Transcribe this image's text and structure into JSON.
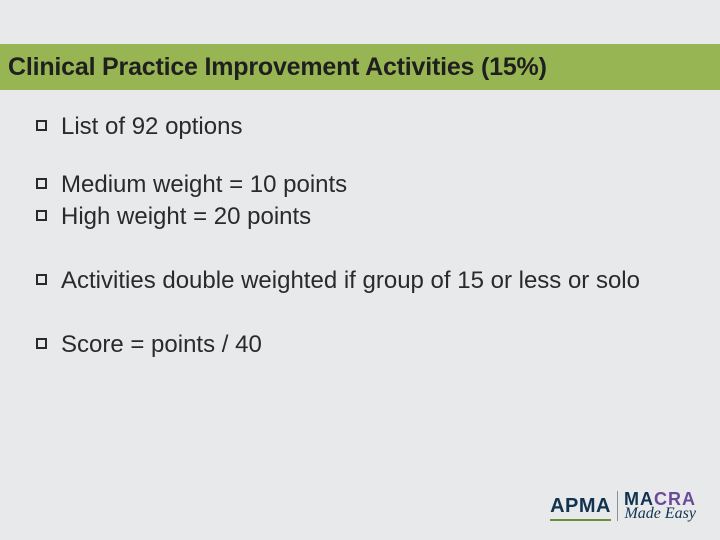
{
  "slide": {
    "title": "Clinical Practice Improvement Activities (15%)",
    "title_band_color": "#98b553",
    "background_color": "#e8e9ea",
    "text_color": "#2a2a2a",
    "body_fontsize": 24,
    "title_fontsize": 25,
    "bullets": [
      "List of 92 options",
      "Medium weight = 10 points",
      "High weight = 20 points",
      "Activities double weighted if group of 15 or less or solo",
      "Score = points / 40"
    ],
    "bullet_marker": {
      "shape": "hollow-square",
      "size": 11,
      "border": "#2a2a2a"
    }
  },
  "logo": {
    "left_text": "APMA",
    "right_top": "MACRA",
    "right_bottom": "Made Easy",
    "colors": {
      "apma": "#12334f",
      "underline": "#6b8f3f",
      "macra_left": "#12334f",
      "macra_right": "#6b4a9a"
    }
  }
}
